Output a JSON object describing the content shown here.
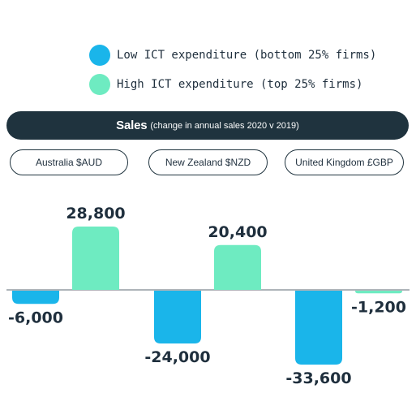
{
  "legend": {
    "items": [
      {
        "label": "Low ICT expenditure (bottom 25% firms)",
        "color": "#1ab5ea"
      },
      {
        "label": "High ICT expenditure (top 25% firms)",
        "color": "#6eebc1"
      }
    ]
  },
  "header": {
    "title": "Sales",
    "subtitle": "(change in annual sales 2020 v 2019)"
  },
  "country_buttons": [
    "Australia $AUD",
    "New Zealand $NZD",
    "United Kingdom £GBP"
  ],
  "chart_data": {
    "type": "bar",
    "categories": [
      "Australia $AUD",
      "New Zealand $NZD",
      "United Kingdom £GBP"
    ],
    "series": [
      {
        "name": "Low ICT expenditure (bottom 25% firms)",
        "color": "#1ab5ea",
        "values": [
          -6000,
          -24000,
          -33600
        ],
        "labels": [
          "-6,000",
          "-24,000",
          "-33,600"
        ]
      },
      {
        "name": "High ICT expenditure (top 25% firms)",
        "color": "#6eebc1",
        "values": [
          28800,
          20400,
          -1200
        ],
        "labels": [
          "28,800",
          "20,400",
          "-1,200"
        ]
      }
    ],
    "title": "Sales",
    "subtitle": "(change in annual sales 2020 v 2019)",
    "xlabel": "",
    "ylabel": "",
    "grid": false,
    "legend_position": "top"
  }
}
